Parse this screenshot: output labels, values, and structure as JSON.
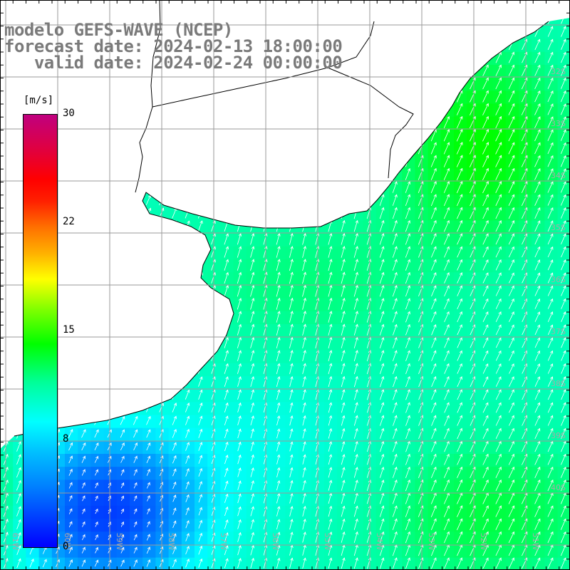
{
  "title": {
    "line1": "modelo GEFS-WAVE (NCEP)",
    "line2": "forecast date: 2024-02-13 18:00:00",
    "line3": "   valid date: 2024-02-24 00:00:00"
  },
  "colorbar": {
    "unit": "[m/s]",
    "ticks": [
      "30",
      "22",
      "15",
      "8",
      "0"
    ],
    "min": 0,
    "max": 30,
    "colors": [
      "#0000ff",
      "#00c0ff",
      "#00ffff",
      "#00ff00",
      "#ffff00",
      "#ff0000",
      "#c0007f"
    ]
  },
  "map": {
    "lat_labels": [
      "32S",
      "33S",
      "34S",
      "35S",
      "36S",
      "37S",
      "38S",
      "39S",
      "40S"
    ],
    "lon_labels": [
      "61W",
      "60W",
      "59W",
      "58W",
      "57W",
      "56W",
      "55W",
      "54W",
      "53W",
      "52W",
      "51W"
    ],
    "land_color": "#ffffff",
    "grid_color": "#9a9a9a",
    "arrow_color": "#ffffff",
    "projection": "lat-lon",
    "variable": "wind speed and direction"
  }
}
